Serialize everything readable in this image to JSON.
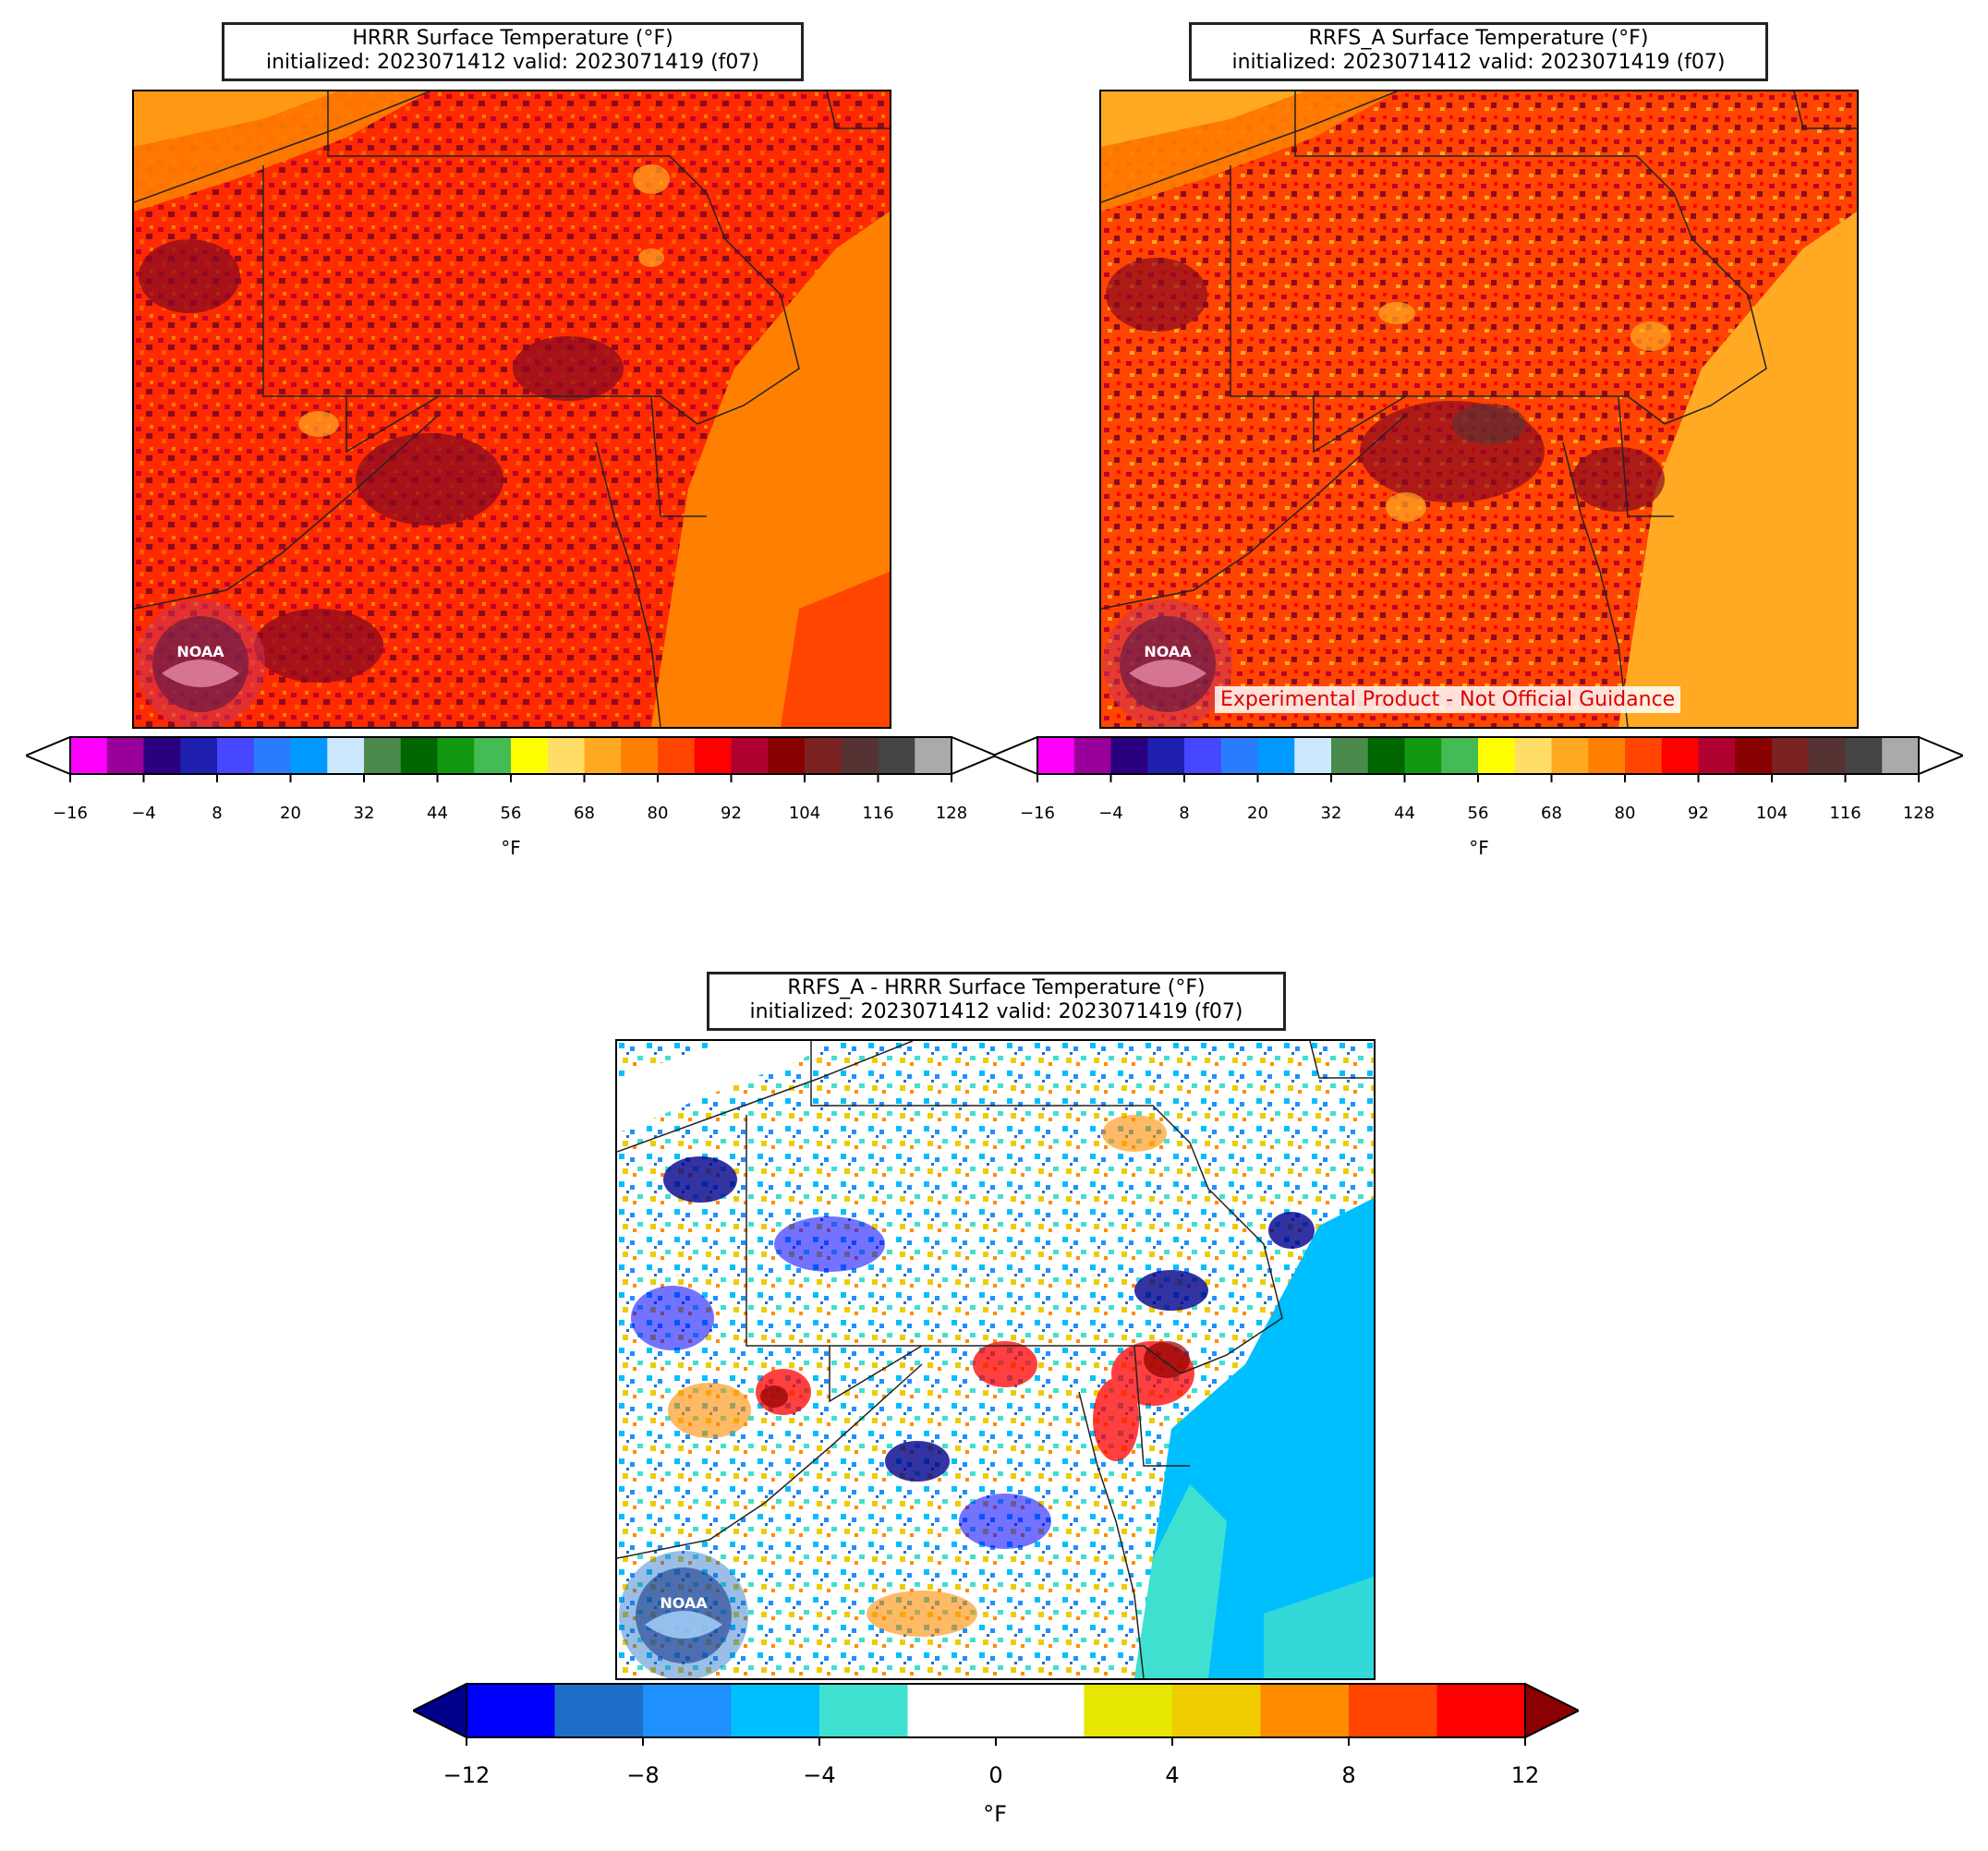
{
  "panels": [
    {
      "id": "hrrr",
      "title_line1": "HRRR Surface Temperature (°F)",
      "title_line2": "initialized: 2023071412 valid: 2023071419 (f07)",
      "logo_text": "NOAA",
      "unit": "°F"
    },
    {
      "id": "rrfs",
      "title_line1": "RRFS_A Surface Temperature (°F)",
      "title_line2": "initialized: 2023071412 valid: 2023071419 (f07)",
      "logo_text": "NOAA",
      "banner": "Experimental Product - Not Official Guidance",
      "unit": "°F"
    },
    {
      "id": "diff",
      "title_line1": "RRFS_A - HRRR Surface Temperature (°F)",
      "title_line2": "initialized: 2023071412 valid: 2023071419 (f07)",
      "logo_text": "NOAA",
      "unit": "°F"
    }
  ],
  "temp_colorbar": {
    "ticks": [
      "−16",
      "−4",
      "8",
      "20",
      "32",
      "44",
      "56",
      "68",
      "80",
      "92",
      "104",
      "116",
      "128"
    ],
    "colors": [
      "#ff00ff",
      "#990099",
      "#2a0080",
      "#1f1fb0",
      "#4646ff",
      "#2a7cff",
      "#0099ff",
      "#cce8ff",
      "#4a8a4a",
      "#006600",
      "#129912",
      "#44bb55",
      "#ffff00",
      "#ffdd66",
      "#ffaa22",
      "#ff8000",
      "#ff4500",
      "#ff0000",
      "#b00030",
      "#880000",
      "#7a2222",
      "#553333",
      "#444444",
      "#aaaaaa"
    ],
    "under": "#ffffff",
    "over": "#ffffff"
  },
  "diff_colorbar": {
    "ticks": [
      "−12",
      "−8",
      "−4",
      "0",
      "4",
      "8",
      "12"
    ],
    "colors": [
      "#0000ff",
      "#1e6ec8",
      "#1e90ff",
      "#00bfff",
      "#40e0d0",
      "#ffffff",
      "#ffffff",
      "#e6e600",
      "#eecc00",
      "#ff8c00",
      "#ff4500",
      "#ff0000"
    ],
    "under": "#00008b",
    "over": "#8b0000"
  }
}
